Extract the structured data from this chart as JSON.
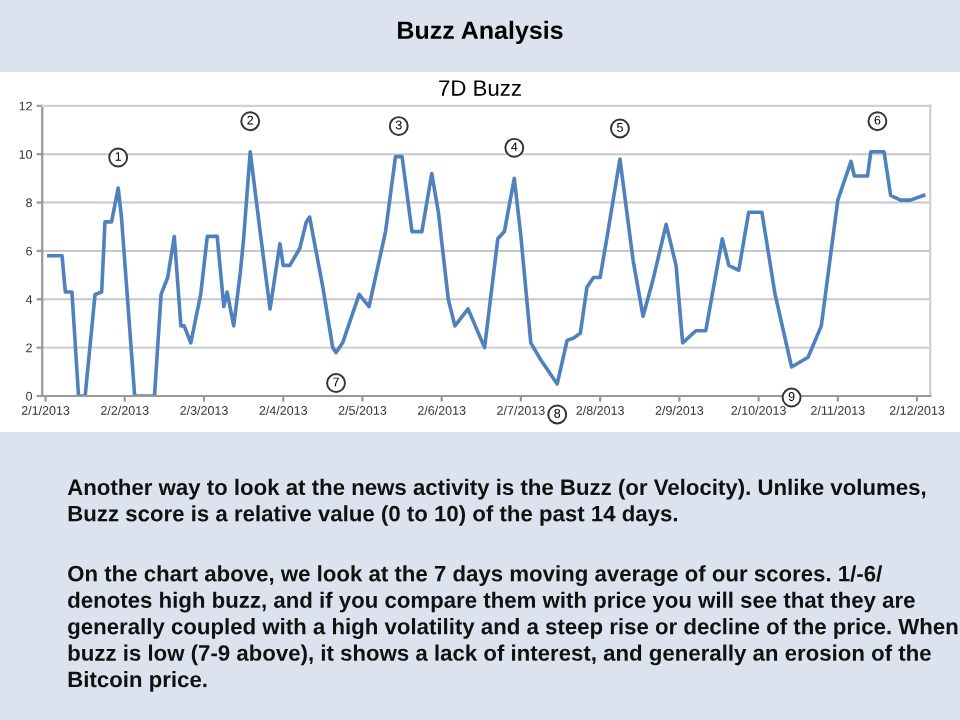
{
  "chart_data": {
    "type": "line",
    "title": "Buzz Analysis",
    "subtitle": "7D Buzz",
    "x": [
      "2013-02-01T01:00",
      "2013-02-01T05:00",
      "2013-02-01T06:00",
      "2013-02-01T08:00",
      "2013-02-01T10:00",
      "2013-02-01T12:00",
      "2013-02-01T15:00",
      "2013-02-01T17:00",
      "2013-02-01T18:00",
      "2013-02-01T20:00",
      "2013-02-01T22:00",
      "2013-02-01T23:00",
      "2013-02-02T03:00",
      "2013-02-02T09:00",
      "2013-02-02T11:00",
      "2013-02-02T13:00",
      "2013-02-02T15:00",
      "2013-02-02T17:00",
      "2013-02-02T18:00",
      "2013-02-02T20:00",
      "2013-02-02T23:00",
      "2013-02-03T01:00",
      "2013-02-03T04:00",
      "2013-02-03T06:00",
      "2013-02-03T07:00",
      "2013-02-03T09:00",
      "2013-02-03T11:00",
      "2013-02-03T12:00",
      "2013-02-03T14:00",
      "2013-02-03T17:00",
      "2013-02-03T20:00",
      "2013-02-03T23:00",
      "2013-02-04T00:00",
      "2013-02-04T02:00",
      "2013-02-04T05:00",
      "2013-02-04T07:00",
      "2013-02-04T08:00",
      "2013-02-04T12:00",
      "2013-02-04T15:00",
      "2013-02-04T16:00",
      "2013-02-04T18:00",
      "2013-02-04T23:00",
      "2013-02-05T02:00",
      "2013-02-05T07:00",
      "2013-02-05T10:00",
      "2013-02-05T12:00",
      "2013-02-05T15:00",
      "2013-02-05T18:00",
      "2013-02-05T21:00",
      "2013-02-05T23:00",
      "2013-02-06T02:00",
      "2013-02-06T04:00",
      "2013-02-06T08:00",
      "2013-02-06T13:00",
      "2013-02-06T17:00",
      "2013-02-06T19:00",
      "2013-02-06T22:00",
      "2013-02-07T00:00",
      "2013-02-07T03:00",
      "2013-02-07T06:00",
      "2013-02-07T11:00",
      "2013-02-07T14:00",
      "2013-02-07T16:00",
      "2013-02-07T18:00",
      "2013-02-07T20:00",
      "2013-02-07T22:00",
      "2013-02-08T00:00",
      "2013-02-08T02:00",
      "2013-02-08T06:00",
      "2013-02-08T10:00",
      "2013-02-08T13:00",
      "2013-02-08T16:00",
      "2013-02-08T20:00",
      "2013-02-08T23:00",
      "2013-02-09T01:00",
      "2013-02-09T05:00",
      "2013-02-09T08:00",
      "2013-02-09T13:00",
      "2013-02-09T15:00",
      "2013-02-09T18:00",
      "2013-02-09T21:00",
      "2013-02-10T01:00",
      "2013-02-10T05:00",
      "2013-02-10T10:00",
      "2013-02-10T15:00",
      "2013-02-10T19:00",
      "2013-02-11T00:00",
      "2013-02-11T04:00",
      "2013-02-11T05:00",
      "2013-02-11T09:00",
      "2013-02-11T10:00",
      "2013-02-11T14:00",
      "2013-02-11T16:00",
      "2013-02-11T19:00",
      "2013-02-11T22:00",
      "2013-02-12T02:00"
    ],
    "series": [
      {
        "color": "#4f81bd",
        "values": [
          5.8,
          5.8,
          4.3,
          4.3,
          0,
          0,
          4.2,
          4.3,
          7.2,
          7.2,
          8.6,
          7.4,
          0,
          0,
          4.2,
          4.9,
          6.6,
          2.9,
          2.9,
          2.2,
          4.2,
          6.6,
          6.6,
          3.7,
          4.3,
          2.9,
          5.1,
          6.5,
          10.1,
          6.8,
          3.6,
          6.3,
          5.4,
          5.4,
          6.1,
          7.2,
          7.4,
          4.5,
          2.0,
          1.8,
          2.2,
          4.2,
          3.7,
          6.8,
          9.9,
          9.9,
          6.8,
          6.8,
          9.2,
          7.6,
          4.0,
          2.9,
          3.6,
          2.0,
          6.5,
          6.8,
          9.0,
          6.6,
          2.2,
          1.5,
          0.5,
          2.3,
          2.4,
          2.6,
          4.5,
          4.9,
          4.9,
          6.5,
          9.8,
          5.6,
          3.3,
          4.8,
          7.1,
          5.4,
          2.2,
          2.7,
          2.7,
          6.5,
          5.4,
          5.2,
          7.6,
          7.6,
          4.2,
          1.2,
          1.6,
          2.9,
          8.1,
          9.7,
          9.1,
          9.1,
          10.1,
          10.1,
          8.3,
          8.1,
          8.1,
          8.3
        ]
      }
    ],
    "xlim": [
      "2013-01-31T23:00",
      "2013-02-12T04:00"
    ],
    "xticks": [
      {
        "value": "2013-02-01",
        "label": "2/1/2013"
      },
      {
        "value": "2013-02-02",
        "label": "2/2/2013"
      },
      {
        "value": "2013-02-03",
        "label": "2/3/2013"
      },
      {
        "value": "2013-02-04",
        "label": "2/4/2013"
      },
      {
        "value": "2013-02-05",
        "label": "2/5/2013"
      },
      {
        "value": "2013-02-06",
        "label": "2/6/2013"
      },
      {
        "value": "2013-02-07",
        "label": "2/7/2013"
      },
      {
        "value": "2013-02-08",
        "label": "2/8/2013"
      },
      {
        "value": "2013-02-09",
        "label": "2/9/2013"
      },
      {
        "value": "2013-02-10",
        "label": "2/10/2013"
      },
      {
        "value": "2013-02-11",
        "label": "2/11/2013"
      },
      {
        "value": "2013-02-12",
        "label": "2/12/2013"
      }
    ],
    "ylim": [
      0,
      12
    ],
    "yticks": [
      0,
      2,
      4,
      6,
      8,
      10,
      12
    ],
    "grid": "y",
    "marker": "none",
    "line_style": "solid",
    "annotations": [
      {
        "text": "1",
        "x": "2013-02-01T22:00",
        "y": 8.6
      },
      {
        "text": "2",
        "x": "2013-02-03T14:00",
        "y": 10.1
      },
      {
        "text": "3",
        "x": "2013-02-05T11:00",
        "y": 9.9
      },
      {
        "text": "4",
        "x": "2013-02-06T22:00",
        "y": 9.0
      },
      {
        "text": "5",
        "x": "2013-02-08T06:00",
        "y": 9.8
      },
      {
        "text": "6",
        "x": "2013-02-11T12:00",
        "y": 10.1
      },
      {
        "text": "7",
        "x": "2013-02-04T16:00",
        "y": 1.8
      },
      {
        "text": "8",
        "x": "2013-02-07T11:00",
        "y": 0.5
      },
      {
        "text": "9",
        "x": "2013-02-10T10:00",
        "y": 1.2
      },
      "Another way to look at the news activity is the Buzz (or Velocity). Unlike volumes, Buzz score is a relative value (0 to 10) of the past 14 days.",
      "On the chart above, we look at the 7 days moving average of our scores. 1/-6/ denotes high buzz, and if you compare them with price you will see that they are generally coupled with a high volatility and a steep rise or decline of the price. When buzz is low (7-9 above), it shows a lack of interest, and generally an erosion of the Bitcoin price."
    ]
  }
}
